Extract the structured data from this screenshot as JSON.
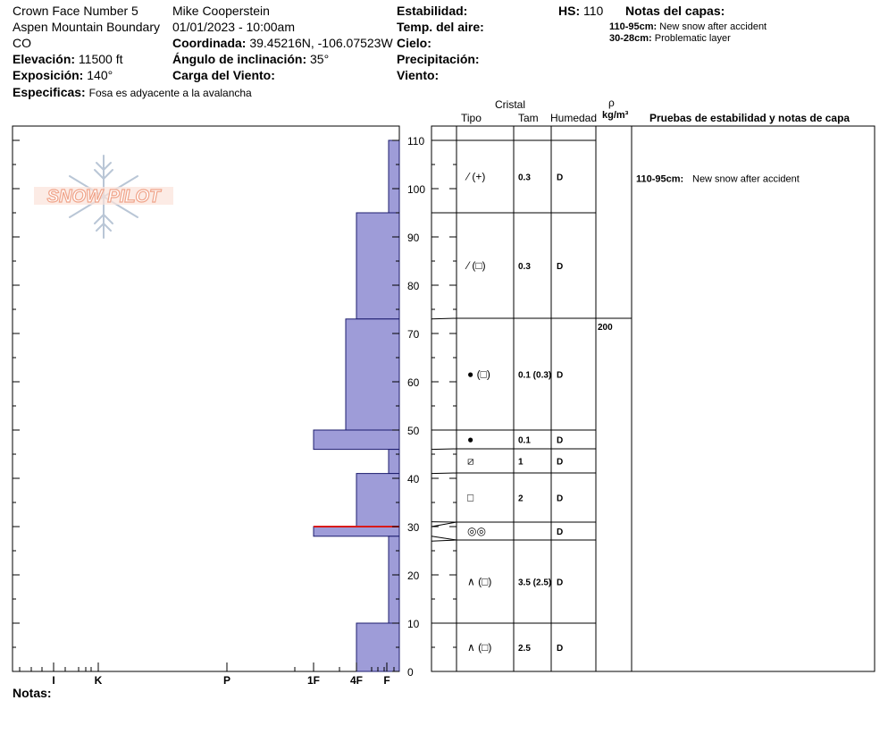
{
  "header": {
    "location_name": "Crown Face Number 5",
    "observer": "Mike Cooperstein",
    "area": "Aspen Mountain Boundary",
    "datetime": "01/01/2023 - 10:00am",
    "state": "CO",
    "coord_label": "Coordinada:",
    "coord_value": "39.45216N, -106.07523W",
    "elev_label": "Elevación:",
    "elev_value": "11500 ft",
    "angle_label": "Ángulo de inclinación:",
    "angle_value": "35°",
    "expo_label": "Exposición:",
    "expo_value": "140°",
    "wind_load_label": "Carga del Viento:",
    "spec_label": "Especificas:",
    "spec_value": "Fosa es adyacente a la avalancha",
    "stability_label": "Estabilidad:",
    "air_temp_label": "Temp. del aire:",
    "sky_label": "Cielo:",
    "precip_label": "Precipitación:",
    "wind_label": "Viento:",
    "hs_label": "HS:",
    "hs_value": "110",
    "layer_notes_title": "Notas del capas:",
    "layer_notes": [
      {
        "range": "110-95cm:",
        "text": "New snow after accident"
      },
      {
        "range": "30-28cm:",
        "text": "Problematic layer"
      }
    ]
  },
  "logo": {
    "text": "SNOW PILOT"
  },
  "table_headers": {
    "cristal": "Cristal",
    "tipo": "Tipo",
    "tam": "Tam",
    "humedad": "Humedad",
    "rho": "ρ",
    "density_unit": "kg/m³",
    "tests": "Pruebas de estabilidad y notas de capa"
  },
  "footer": {
    "notes_label": "Notas:"
  },
  "colors": {
    "bar_fill": "#9e9cd8",
    "weak_layer": "#d91a1a",
    "logo": "#f0a48a"
  },
  "chart_data": {
    "type": "bar",
    "orientation": "horizontal",
    "ylabel": "",
    "y_axis": {
      "min": 0,
      "max": 110,
      "ticks": [
        0,
        10,
        20,
        30,
        40,
        50,
        60,
        70,
        80,
        90,
        100,
        110
      ]
    },
    "x_axis": {
      "labels": [
        "I",
        "K",
        "P",
        "1F",
        "4F",
        "F"
      ],
      "reversed": true
    },
    "hardness_layers": [
      {
        "top": 110,
        "bottom": 95,
        "hardness": "F"
      },
      {
        "top": 95,
        "bottom": 73,
        "hardness": "4F"
      },
      {
        "top": 73,
        "bottom": 50,
        "hardness": "4F+"
      },
      {
        "top": 50,
        "bottom": 46,
        "hardness": "1F"
      },
      {
        "top": 46,
        "bottom": 41,
        "hardness": "F"
      },
      {
        "top": 41,
        "bottom": 30,
        "hardness": "4F"
      },
      {
        "top": 30,
        "bottom": 28,
        "hardness": "1F"
      },
      {
        "top": 28,
        "bottom": 10,
        "hardness": "F"
      },
      {
        "top": 10,
        "bottom": 0,
        "hardness": "4F"
      }
    ],
    "weak_layer_depth": 30,
    "layers": [
      {
        "top": 110,
        "bottom": 95,
        "tipo": "⁄ (+)",
        "tam": "0.3",
        "humedad": "D",
        "densidad": "",
        "note": "110-95cm:",
        "note_text": "New snow after accident"
      },
      {
        "top": 95,
        "bottom": 73,
        "tipo": "⁄ (□)",
        "tam": "0.3",
        "humedad": "D",
        "densidad": "",
        "note": "",
        "note_text": ""
      },
      {
        "top": 73,
        "bottom": 50,
        "tipo": "● (□)",
        "tam": "0.1 (0.3)",
        "humedad": "D",
        "densidad": "200",
        "note": "",
        "note_text": ""
      },
      {
        "top": 50,
        "bottom": 46,
        "tipo": "●",
        "tam": "0.1",
        "humedad": "D",
        "densidad": "",
        "note": "",
        "note_text": ""
      },
      {
        "top": 46,
        "bottom": 41,
        "tipo": "⧄",
        "tam": "1",
        "humedad": "D",
        "densidad": "",
        "note": "",
        "note_text": ""
      },
      {
        "top": 41,
        "bottom": 31,
        "tipo": "□",
        "tam": "2",
        "humedad": "D",
        "densidad": "",
        "note": "",
        "note_text": ""
      },
      {
        "top": 31,
        "bottom": 27,
        "tipo": "◎◎",
        "tam": "",
        "humedad": "D",
        "densidad": "",
        "note": "",
        "note_text": ""
      },
      {
        "top": 27,
        "bottom": 10,
        "tipo": "∧ (□)",
        "tam": "3.5 (2.5)",
        "humedad": "D",
        "densidad": "",
        "note": "",
        "note_text": ""
      },
      {
        "top": 10,
        "bottom": 0,
        "tipo": "∧ (□)",
        "tam": "2.5",
        "humedad": "D",
        "densidad": "",
        "note": "",
        "note_text": ""
      }
    ]
  }
}
